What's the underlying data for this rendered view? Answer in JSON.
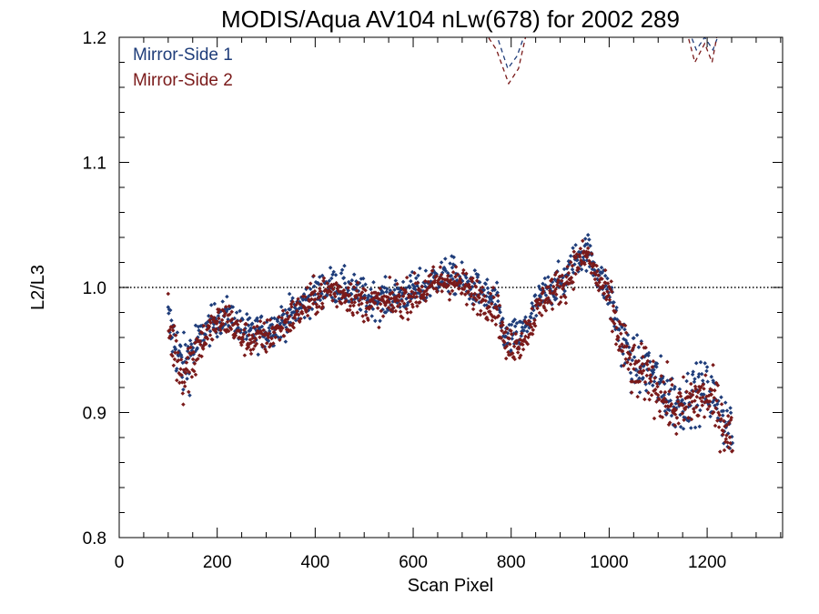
{
  "chart_data": {
    "type": "scatter",
    "title": "MODIS/Aqua AV104 nLw(678) for 2002 289",
    "xlabel": "Scan Pixel",
    "ylabel": "L2/L3",
    "xlim": [
      0,
      1354
    ],
    "ylim": [
      0.8,
      1.2
    ],
    "x_ticks": [
      0,
      200,
      400,
      600,
      800,
      1000,
      1200
    ],
    "x_tick_labels": [
      "0",
      "200",
      "400",
      "600",
      "800",
      "1000",
      "1200"
    ],
    "y_ticks": [
      0.8,
      0.9,
      1.0,
      1.1,
      1.2
    ],
    "y_tick_labels": [
      "0.8",
      "0.9",
      "1.0",
      "1.1",
      "1.2"
    ],
    "reference_line": 1.0,
    "legend_position": "top-left",
    "series": [
      {
        "name": "Mirror-Side 1",
        "color": "#1f3d7a",
        "profile": [
          [
            100,
            0.972
          ],
          [
            115,
            0.955
          ],
          [
            130,
            0.935
          ],
          [
            150,
            0.95
          ],
          [
            170,
            0.962
          ],
          [
            200,
            0.975
          ],
          [
            225,
            0.978
          ],
          [
            245,
            0.968
          ],
          [
            265,
            0.963
          ],
          [
            300,
            0.965
          ],
          [
            340,
            0.975
          ],
          [
            370,
            0.985
          ],
          [
            400,
            0.995
          ],
          [
            430,
            1.002
          ],
          [
            460,
            1.0
          ],
          [
            500,
            0.992
          ],
          [
            540,
            0.99
          ],
          [
            580,
            0.995
          ],
          [
            620,
            1.0
          ],
          [
            650,
            1.008
          ],
          [
            680,
            1.01
          ],
          [
            710,
            1.002
          ],
          [
            740,
            0.996
          ],
          [
            770,
            0.988
          ],
          [
            790,
            0.958
          ],
          [
            820,
            0.962
          ],
          [
            845,
            0.98
          ],
          [
            870,
            0.997
          ],
          [
            890,
            1.002
          ],
          [
            910,
            1.006
          ],
          [
            930,
            1.022
          ],
          [
            955,
            1.03
          ],
          [
            975,
            1.012
          ],
          [
            1000,
            0.995
          ],
          [
            1020,
            0.965
          ],
          [
            1050,
            0.937
          ],
          [
            1080,
            0.935
          ],
          [
            1110,
            0.918
          ],
          [
            1140,
            0.905
          ],
          [
            1170,
            0.915
          ],
          [
            1200,
            0.918
          ],
          [
            1225,
            0.905
          ],
          [
            1240,
            0.89
          ],
          [
            1252,
            0.88
          ]
        ],
        "dashed_segments": [
          [
            [
              748,
              1.205
            ],
            [
              772,
              1.2
            ],
            [
              793,
              1.175
            ],
            [
              812,
              1.185
            ],
            [
              830,
              1.205
            ]
          ],
          [
            [
              1163,
              1.205
            ],
            [
              1178,
              1.19
            ],
            [
              1195,
              1.2
            ],
            [
              1212,
              1.19
            ],
            [
              1226,
              1.205
            ]
          ]
        ]
      },
      {
        "name": "Mirror-Side 2",
        "color": "#7a1a1a",
        "profile": [
          [
            100,
            0.968
          ],
          [
            115,
            0.95
          ],
          [
            130,
            0.93
          ],
          [
            150,
            0.945
          ],
          [
            170,
            0.958
          ],
          [
            200,
            0.972
          ],
          [
            225,
            0.975
          ],
          [
            245,
            0.962
          ],
          [
            265,
            0.958
          ],
          [
            300,
            0.96
          ],
          [
            340,
            0.972
          ],
          [
            370,
            0.982
          ],
          [
            400,
            0.992
          ],
          [
            430,
            0.998
          ],
          [
            460,
            0.995
          ],
          [
            500,
            0.988
          ],
          [
            540,
            0.986
          ],
          [
            580,
            0.991
          ],
          [
            620,
            0.997
          ],
          [
            650,
            1.004
          ],
          [
            680,
            1.006
          ],
          [
            710,
            0.998
          ],
          [
            740,
            0.992
          ],
          [
            770,
            0.984
          ],
          [
            790,
            0.952
          ],
          [
            820,
            0.957
          ],
          [
            845,
            0.975
          ],
          [
            870,
            0.993
          ],
          [
            890,
            0.998
          ],
          [
            910,
            1.003
          ],
          [
            930,
            1.018
          ],
          [
            955,
            1.026
          ],
          [
            975,
            1.008
          ],
          [
            1000,
            0.991
          ],
          [
            1020,
            0.96
          ],
          [
            1050,
            0.932
          ],
          [
            1080,
            0.93
          ],
          [
            1110,
            0.913
          ],
          [
            1140,
            0.9
          ],
          [
            1170,
            0.91
          ],
          [
            1200,
            0.913
          ],
          [
            1225,
            0.9
          ],
          [
            1240,
            0.885
          ],
          [
            1252,
            0.876
          ]
        ],
        "dashed_segments": [
          [
            [
              745,
              1.205
            ],
            [
              770,
              1.19
            ],
            [
              795,
              1.163
            ],
            [
              815,
              1.175
            ],
            [
              832,
              1.205
            ]
          ],
          [
            [
              1158,
              1.205
            ],
            [
              1175,
              1.18
            ],
            [
              1195,
              1.195
            ],
            [
              1210,
              1.18
            ],
            [
              1222,
              1.205
            ]
          ]
        ]
      }
    ]
  }
}
